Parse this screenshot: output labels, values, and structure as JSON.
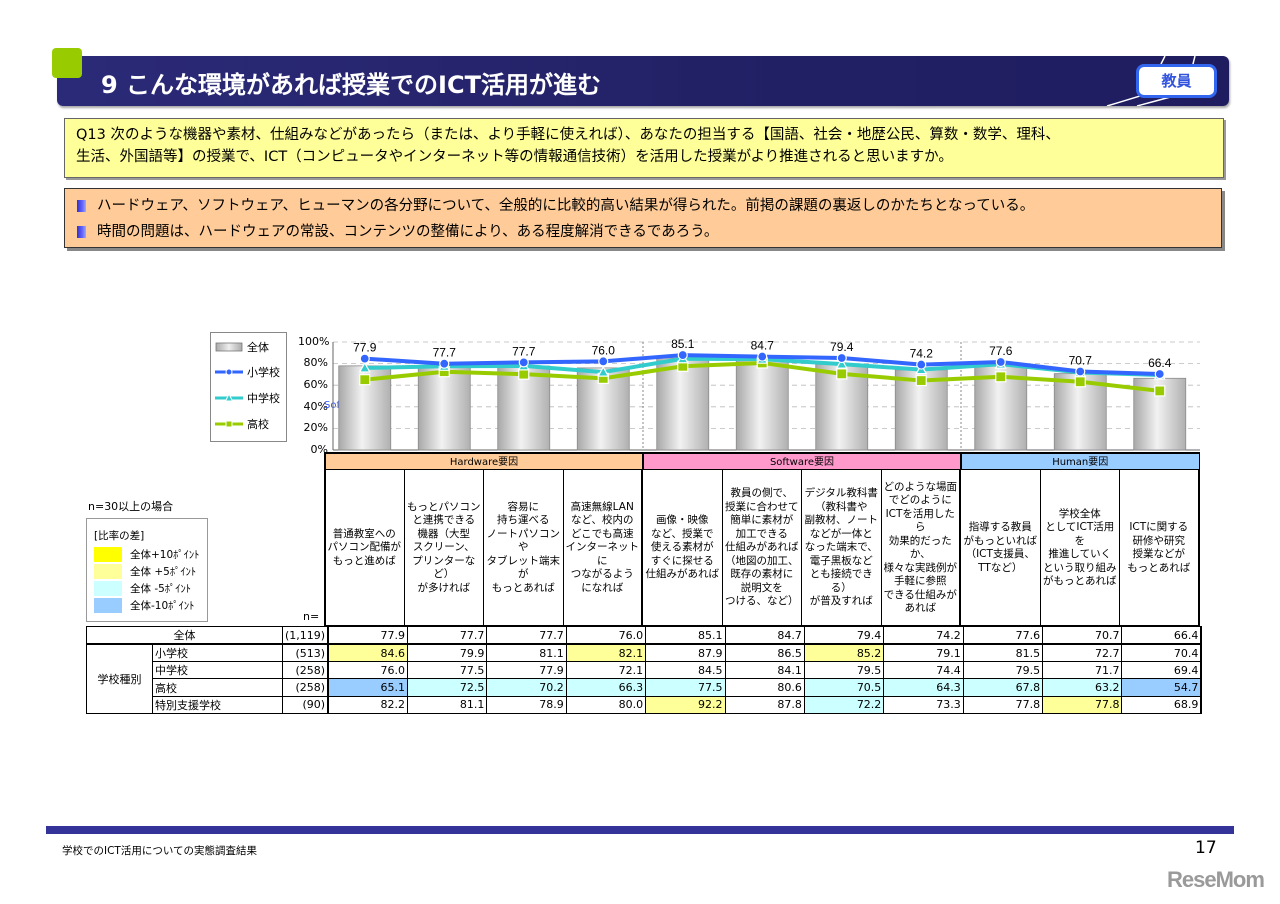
{
  "header": {
    "title": "9  こんな環境があれば授業でのICT活用が進む",
    "badge": "教員"
  },
  "question": {
    "line1": "Q13  次のような機器や素材、仕組みなどがあったら（または、より手軽に使えれば）、あなたの担当する【国語、社会・地歴公民、算数・数学、理科、",
    "line2": "生活、外国語等】の授業で、ICT（コンピュータやインターネット等の情報通信技術）を活用した授業がより推進されると思いますか。"
  },
  "summary": {
    "lines": [
      "ハードウェア、ソフトウェア、ヒューマンの各分野について、全般的に比較的高い結果が得られた。前掲の課題の裏返しのかたちとなっている。",
      "時間の問題は、ハードウェアの常設、コンテンツの整備により、ある程度解消できるであろう。"
    ]
  },
  "chart_data": {
    "type": "bar",
    "title": "こんな環境があれば授業でのICT活用が進む",
    "xlabel": "",
    "ylabel": "",
    "ylim": [
      0,
      100
    ],
    "yticks": [
      "100%",
      "80%",
      "60%",
      "40%",
      "20%",
      "0%"
    ],
    "grid": true,
    "legend_position": "left",
    "stray_label": "Softw",
    "categories": [
      "普通教室へのパソコン配備がもっと進めば",
      "もっとパソコンと連携できる機器（大型スクリーン、プリンターなど）が多ければ",
      "容易に持ち運べるノートパソコンやタブレット端末がもっとあれば",
      "高速無線LANなど、校内のどこでも高速インターネットにつながるようになれば",
      "画像・映像など、授業で使える素材がすぐに探せる仕組みがあれば",
      "教員の側で、授業に合わせて簡単に素材が加工できる仕組みがあれば（地図の加工、既存の素材に説明文をつける、など）",
      "デジタル教科書（教科書や副教材、ノートなどが一体となった端末で、電子黒板などとも接続できる）が普及すれば",
      "どのような場面でどのようにICTを活用したら効果的だったか、様々な実践例が手軽に参照できる仕組みがあれば",
      "指導する教員がもっといれば（ICT支援員、TTなど）",
      "学校全体としてICT活用を推進していくという取り組みがもっとあれば",
      "ICTに関する研修や研究授業などがもっとあれば"
    ],
    "groups": [
      {
        "name": "Hardware要因",
        "span": [
          0,
          3
        ],
        "color": "#ffcc99"
      },
      {
        "name": "Software要因",
        "span": [
          4,
          7
        ],
        "color": "#ff99cc"
      },
      {
        "name": "Human要因",
        "span": [
          8,
          10
        ],
        "color": "#99ccff"
      }
    ],
    "series": [
      {
        "name": "全体",
        "kind": "bar",
        "color": "#c8c8c8",
        "values": [
          77.9,
          77.7,
          77.7,
          76.0,
          85.1,
          84.7,
          79.4,
          74.2,
          77.6,
          70.7,
          66.4
        ]
      },
      {
        "name": "小学校",
        "kind": "line",
        "marker": "circle",
        "color": "#3366ff",
        "values": [
          84.6,
          79.9,
          81.1,
          82.1,
          87.9,
          86.5,
          85.2,
          79.1,
          81.5,
          72.7,
          70.4
        ]
      },
      {
        "name": "中学校",
        "kind": "line",
        "marker": "triangle",
        "color": "#33cccc",
        "values": [
          76.0,
          77.5,
          77.9,
          72.1,
          84.5,
          84.1,
          79.5,
          74.4,
          79.5,
          71.7,
          69.4
        ]
      },
      {
        "name": "高校",
        "kind": "line",
        "marker": "square",
        "color": "#99cc00",
        "values": [
          65.1,
          72.5,
          70.2,
          66.3,
          77.5,
          80.6,
          70.5,
          64.3,
          67.8,
          63.2,
          54.7
        ]
      }
    ],
    "data_labels": [
      "77.9",
      "77.7",
      "77.7",
      "76.0",
      "85.1",
      "84.7",
      "79.4",
      "74.2",
      "77.6",
      "70.7",
      "66.4"
    ]
  },
  "table": {
    "note": "n=30以上の場合",
    "n_header": "n=",
    "diff_legend": {
      "title": "[比率の差]",
      "items": [
        {
          "label": "全体+10ﾎﾟｲﾝﾄ",
          "color": "#ffff00"
        },
        {
          "label": "全体 +5ﾎﾟｲﾝﾄ",
          "color": "#ffff99"
        },
        {
          "label": "全体 -5ﾎﾟｲﾝﾄ",
          "color": "#ccffff"
        },
        {
          "label": "全体-10ﾎﾟｲﾝﾄ",
          "color": "#99ccff"
        }
      ]
    },
    "question_headers": [
      "普通教室への\nパソコン配備が\nもっと進めば",
      "もっとパソコン\nと連携できる\n機器（大型\nスクリーン、\nプリンターなど）\nが多ければ",
      "容易に\n持ち運べる\nノートパソコンや\nタブレット端末が\nもっとあれば",
      "高速無線LAN\nなど、校内の\nどこでも高速\nインターネットに\nつながるよう\nになれば",
      "画像・映像\nなど、授業で\n使える素材が\nすぐに探せる\n仕組みがあれば",
      "教員の側で、\n授業に合わせて\n簡単に素材が\n加工できる\n仕組みがあれば\n（地図の加工、\n既存の素材に\n説明文を\nつける、など）",
      "デジタル教科書\n（教科書や\n副教材、ノート\nなどが一体と\nなった端末で、\n電子黒板など\nとも接続できる）\nが普及すれば",
      "どのような場面\nでどのように\nICTを活用したら\n効果的だった\nか、\n様々な実践例が\n手軽に参照\nできる仕組みが\nあれば",
      "指導する教員\nがもっといれば\n（ICT支援員、\nTTなど）",
      "学校全体\nとしてICT活用を\n推進していく\nという取り組み\nがもっとあれば",
      "ICTに関する\n研修や研究\n授業などが\nもっとあれば"
    ],
    "group_label": "学校種別",
    "rows": [
      {
        "label": "全体",
        "n": "(1,119)",
        "values": [
          "77.9",
          "77.7",
          "77.7",
          "76.0",
          "85.1",
          "84.7",
          "79.4",
          "74.2",
          "77.6",
          "70.7",
          "66.4"
        ],
        "highlights": [
          "",
          "",
          "",
          "",
          "",
          "",
          "",
          "",
          "",
          "",
          ""
        ]
      },
      {
        "label": "小学校",
        "n": "(513)",
        "values": [
          "84.6",
          "79.9",
          "81.1",
          "82.1",
          "87.9",
          "86.5",
          "85.2",
          "79.1",
          "81.5",
          "72.7",
          "70.4"
        ],
        "highlights": [
          "p5",
          "",
          "",
          "p5",
          "",
          "",
          "p5",
          "",
          "",
          "",
          ""
        ]
      },
      {
        "label": "中学校",
        "n": "(258)",
        "values": [
          "76.0",
          "77.5",
          "77.9",
          "72.1",
          "84.5",
          "84.1",
          "79.5",
          "74.4",
          "79.5",
          "71.7",
          "69.4"
        ],
        "highlights": [
          "",
          "",
          "",
          "",
          "",
          "",
          "",
          "",
          "",
          "",
          ""
        ]
      },
      {
        "label": "高校",
        "n": "(258)",
        "values": [
          "65.1",
          "72.5",
          "70.2",
          "66.3",
          "77.5",
          "80.6",
          "70.5",
          "64.3",
          "67.8",
          "63.2",
          "54.7"
        ],
        "highlights": [
          "m10",
          "m5",
          "m5",
          "m5",
          "m5",
          "",
          "m5",
          "m5",
          "m5",
          "m5",
          "m10"
        ]
      },
      {
        "label": "特別支援学校",
        "n": "(90)",
        "values": [
          "82.2",
          "81.1",
          "78.9",
          "80.0",
          "92.2",
          "87.8",
          "72.2",
          "73.3",
          "77.8",
          "77.8",
          "68.9"
        ],
        "highlights": [
          "",
          "",
          "",
          "",
          "p5",
          "",
          "m5",
          "",
          "",
          "p5",
          ""
        ]
      }
    ]
  },
  "footer": {
    "source": "学校でのICT活用についての実態調査結果",
    "page": "17",
    "logo": "ReseMom"
  },
  "colors": {
    "header_bg": "#232166",
    "accent_green": "#99cc00",
    "question_bg": "#ffff99",
    "summary_bg": "#ffcc99",
    "footer_bar": "#333399"
  }
}
